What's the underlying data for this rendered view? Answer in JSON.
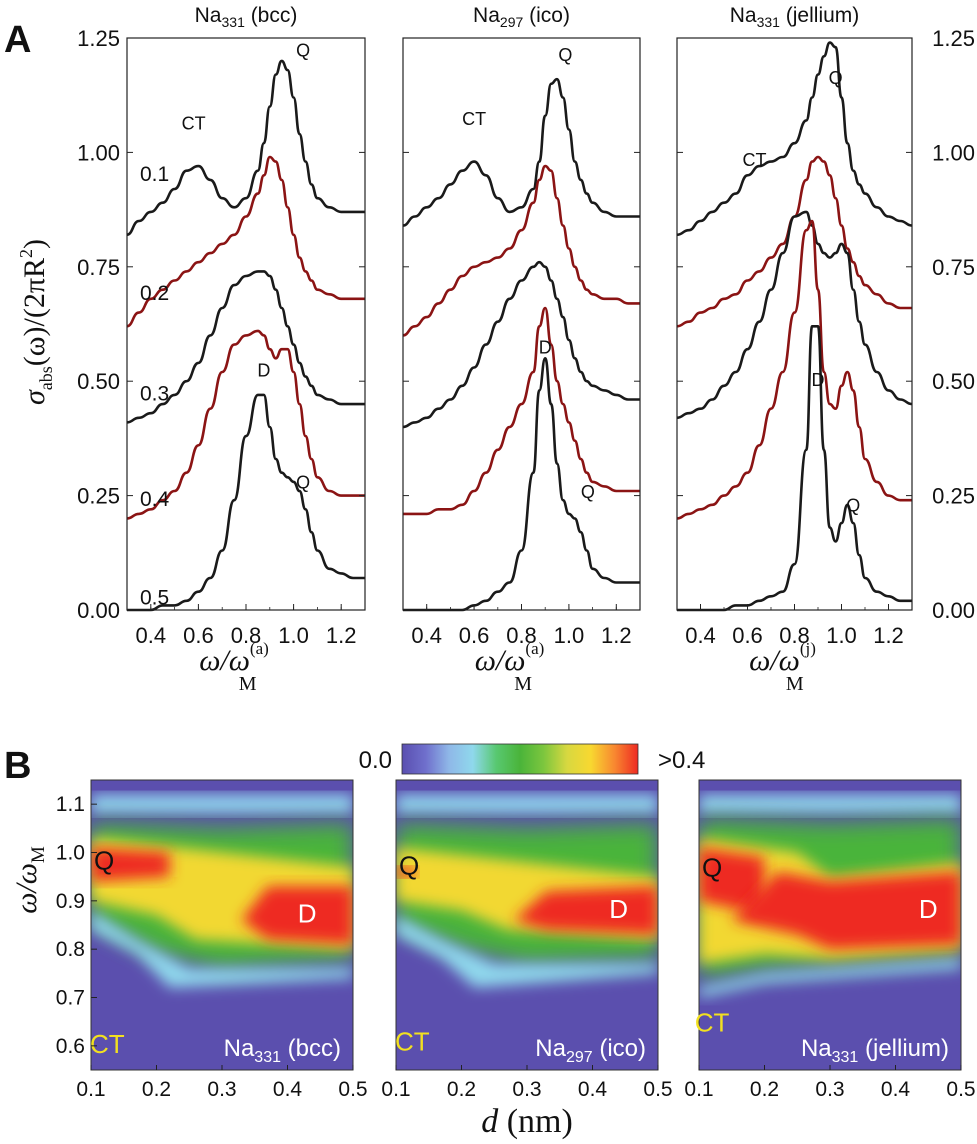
{
  "panel_letters": {
    "a": "A",
    "b": "B"
  },
  "chart_data": [
    {
      "type": "line",
      "panel": "A",
      "subplots": [
        {
          "title_main": "Na",
          "title_sub": "331",
          "title_rest": " (bcc)",
          "xlabel": {
            "w": "ω/ω",
            "sub": "M",
            "sup": "(a)"
          },
          "curve_labels": [
            {
              "text": "CT",
              "x": 0.58,
              "y": 1.05
            },
            {
              "text": "Q",
              "x": 1.04,
              "y": 1.21
            },
            {
              "text": "D",
              "x": 0.875,
              "y": 0.51
            },
            {
              "text": "Q",
              "x": 1.04,
              "y": 0.265
            }
          ]
        },
        {
          "title_main": "Na",
          "title_sub": "297",
          "title_rest": " (ico)",
          "xlabel": {
            "w": "ω/ω",
            "sub": "M",
            "sup": "(a)"
          },
          "curve_labels": [
            {
              "text": "CT",
              "x": 0.6,
              "y": 1.06
            },
            {
              "text": "Q",
              "x": 0.985,
              "y": 1.2
            },
            {
              "text": "D",
              "x": 0.9,
              "y": 0.56
            },
            {
              "text": "Q",
              "x": 1.08,
              "y": 0.245
            }
          ]
        },
        {
          "title_main": "Na",
          "title_sub": "331",
          "title_rest": " (jellium)",
          "xlabel": {
            "w": "ω/ω",
            "sub": "M",
            "sup": "(j)"
          },
          "curve_labels": [
            {
              "text": "CT",
              "x": 0.63,
              "y": 0.97
            },
            {
              "text": "Q",
              "x": 0.975,
              "y": 1.15
            },
            {
              "text": "D",
              "x": 0.9,
              "y": 0.49
            },
            {
              "text": "Q",
              "x": 1.05,
              "y": 0.215
            }
          ]
        }
      ],
      "offset_labels": [
        {
          "text": "0.1",
          "y": 0.955
        },
        {
          "text": "0.2",
          "y": 0.695
        },
        {
          "text": "0.3",
          "y": 0.475
        },
        {
          "text": "0.4",
          "y": 0.245
        },
        {
          "text": "0.5",
          "y": 0.03
        }
      ],
      "ylabel": {
        "sigma": "σ",
        "sub": "abs",
        "rest": "(ω)/(2πR",
        "sup": "2",
        "close": ")"
      },
      "xlim": [
        0.3,
        1.3
      ],
      "ylim": [
        0.0,
        1.25
      ],
      "xticks": [
        "0.4",
        "0.6",
        "0.8",
        "1.0",
        "1.2"
      ],
      "xtick_values": [
        0.4,
        0.6,
        0.8,
        1.0,
        1.2
      ],
      "yticks": [
        "0.00",
        "0.25",
        "0.50",
        "0.75",
        "1.00",
        "1.25"
      ],
      "ytick_values": [
        0,
        0.25,
        0.5,
        0.75,
        1.0,
        1.25
      ],
      "series_names": [
        "d=0.1 nm",
        "d=0.2 nm",
        "d=0.3 nm",
        "d=0.4 nm",
        "d=0.5 nm"
      ],
      "series_colors": [
        "#1a1a1a",
        "#8b1414",
        "#1a1a1a",
        "#8b1414",
        "#1a1a1a"
      ],
      "x": [
        0.3,
        0.35,
        0.4,
        0.45,
        0.5,
        0.55,
        0.6,
        0.65,
        0.7,
        0.75,
        0.8,
        0.85,
        0.875,
        0.9,
        0.925,
        0.95,
        0.975,
        1.0,
        1.025,
        1.05,
        1.075,
        1.1,
        1.15,
        1.2,
        1.25,
        1.3
      ],
      "series": [
        [
          [
            0.82,
            0.85,
            0.87,
            0.89,
            0.92,
            0.96,
            0.97,
            0.94,
            0.9,
            0.88,
            0.9,
            0.96,
            1.02,
            1.1,
            1.17,
            1.2,
            1.18,
            1.12,
            1.04,
            0.98,
            0.93,
            0.9,
            0.88,
            0.87,
            0.87,
            0.87
          ],
          [
            0.84,
            0.86,
            0.88,
            0.9,
            0.93,
            0.96,
            0.98,
            0.95,
            0.9,
            0.87,
            0.88,
            0.92,
            0.98,
            1.08,
            1.15,
            1.16,
            1.12,
            1.05,
            0.98,
            0.94,
            0.91,
            0.89,
            0.87,
            0.86,
            0.86,
            0.86
          ],
          [
            0.82,
            0.83,
            0.85,
            0.87,
            0.89,
            0.91,
            0.95,
            0.97,
            0.98,
            0.99,
            1.02,
            1.07,
            1.12,
            1.17,
            1.21,
            1.24,
            1.23,
            1.12,
            1.02,
            0.96,
            0.93,
            0.91,
            0.88,
            0.86,
            0.85,
            0.84
          ]
        ],
        [
          [
            0.62,
            0.65,
            0.68,
            0.7,
            0.72,
            0.74,
            0.76,
            0.78,
            0.8,
            0.82,
            0.86,
            0.91,
            0.95,
            0.99,
            0.98,
            0.94,
            0.88,
            0.82,
            0.77,
            0.74,
            0.72,
            0.7,
            0.69,
            0.68,
            0.68,
            0.68
          ],
          [
            0.6,
            0.62,
            0.64,
            0.67,
            0.7,
            0.73,
            0.75,
            0.76,
            0.77,
            0.79,
            0.83,
            0.89,
            0.94,
            0.97,
            0.96,
            0.9,
            0.84,
            0.79,
            0.75,
            0.72,
            0.7,
            0.69,
            0.68,
            0.68,
            0.67,
            0.67
          ],
          [
            0.62,
            0.63,
            0.65,
            0.66,
            0.68,
            0.69,
            0.72,
            0.74,
            0.77,
            0.8,
            0.86,
            0.94,
            0.98,
            0.99,
            0.98,
            0.95,
            0.9,
            0.84,
            0.79,
            0.76,
            0.73,
            0.71,
            0.69,
            0.67,
            0.66,
            0.66
          ]
        ],
        [
          [
            0.41,
            0.42,
            0.43,
            0.45,
            0.47,
            0.5,
            0.54,
            0.6,
            0.66,
            0.71,
            0.73,
            0.74,
            0.74,
            0.73,
            0.7,
            0.66,
            0.62,
            0.58,
            0.54,
            0.51,
            0.49,
            0.47,
            0.46,
            0.45,
            0.45,
            0.45
          ],
          [
            0.4,
            0.41,
            0.42,
            0.44,
            0.46,
            0.49,
            0.53,
            0.58,
            0.63,
            0.68,
            0.72,
            0.75,
            0.76,
            0.75,
            0.72,
            0.68,
            0.64,
            0.59,
            0.55,
            0.52,
            0.5,
            0.49,
            0.48,
            0.47,
            0.46,
            0.46
          ],
          [
            0.42,
            0.43,
            0.44,
            0.46,
            0.49,
            0.52,
            0.57,
            0.63,
            0.7,
            0.78,
            0.86,
            0.87,
            0.84,
            0.8,
            0.78,
            0.77,
            0.78,
            0.8,
            0.78,
            0.7,
            0.63,
            0.58,
            0.52,
            0.48,
            0.46,
            0.45
          ]
        ],
        [
          [
            0.2,
            0.21,
            0.22,
            0.24,
            0.26,
            0.3,
            0.36,
            0.44,
            0.52,
            0.58,
            0.6,
            0.61,
            0.6,
            0.57,
            0.55,
            0.57,
            0.57,
            0.52,
            0.45,
            0.38,
            0.33,
            0.29,
            0.26,
            0.25,
            0.25,
            0.25
          ],
          [
            0.21,
            0.21,
            0.21,
            0.22,
            0.22,
            0.23,
            0.26,
            0.3,
            0.35,
            0.4,
            0.45,
            0.52,
            0.62,
            0.66,
            0.58,
            0.5,
            0.45,
            0.41,
            0.37,
            0.33,
            0.3,
            0.28,
            0.27,
            0.26,
            0.26,
            0.26
          ],
          [
            0.2,
            0.21,
            0.22,
            0.23,
            0.25,
            0.27,
            0.3,
            0.36,
            0.44,
            0.52,
            0.65,
            0.83,
            0.85,
            0.7,
            0.52,
            0.45,
            0.44,
            0.49,
            0.52,
            0.48,
            0.4,
            0.33,
            0.28,
            0.25,
            0.24,
            0.24
          ]
        ],
        [
          [
            0.0,
            0.0,
            0.0,
            0.01,
            0.01,
            0.02,
            0.04,
            0.07,
            0.13,
            0.24,
            0.38,
            0.47,
            0.47,
            0.4,
            0.33,
            0.3,
            0.29,
            0.28,
            0.26,
            0.22,
            0.17,
            0.13,
            0.09,
            0.08,
            0.07,
            0.07
          ],
          [
            0.0,
            0.0,
            0.0,
            0.0,
            0.0,
            0.0,
            0.01,
            0.02,
            0.04,
            0.06,
            0.13,
            0.3,
            0.48,
            0.55,
            0.45,
            0.32,
            0.24,
            0.21,
            0.2,
            0.17,
            0.13,
            0.09,
            0.07,
            0.06,
            0.06,
            0.06
          ],
          [
            0.0,
            0.0,
            0.0,
            0.0,
            0.0,
            0.01,
            0.01,
            0.02,
            0.03,
            0.04,
            0.1,
            0.35,
            0.62,
            0.62,
            0.35,
            0.18,
            0.15,
            0.19,
            0.23,
            0.19,
            0.12,
            0.07,
            0.04,
            0.03,
            0.02,
            0.02
          ]
        ]
      ]
    },
    {
      "type": "heatmap",
      "panel": "B",
      "colorbar": {
        "min_label": "0.0",
        "max_label": ">0.4",
        "stops": [
          "#5a4fb0",
          "#6f6fcc",
          "#8fb8e8",
          "#8fd8ec",
          "#58c870",
          "#4ab43a",
          "#7cc63e",
          "#d8d840",
          "#f8d830",
          "#f88830",
          "#ee2a22"
        ]
      },
      "xlabel": {
        "var": "d",
        "unit": " (nm)"
      },
      "ylabel": {
        "w": "ω/ω",
        "sub": "M"
      },
      "xlim": [
        0.1,
        0.5
      ],
      "ylim": [
        0.55,
        1.15
      ],
      "xticks": [
        "0.1",
        "0.2",
        "0.3",
        "0.4",
        "0.5"
      ],
      "xtick_values": [
        0.1,
        0.2,
        0.3,
        0.4,
        0.5
      ],
      "yticks": [
        "0.6",
        "0.7",
        "0.8",
        "0.9",
        "1.0",
        "1.1"
      ],
      "ytick_values": [
        0.6,
        0.7,
        0.8,
        0.9,
        1.0,
        1.1
      ],
      "maps": [
        {
          "label_main": "Na",
          "label_sub": "331",
          "label_rest": " (bcc)",
          "q_label": "Q",
          "d_label": "D",
          "ct_label": "CT",
          "q_pos": [
            0.12,
            0.965
          ],
          "d_pos": [
            0.43,
            0.855
          ],
          "ct_pos": [
            0.125,
            0.585
          ]
        },
        {
          "label_main": "Na",
          "label_sub": "297",
          "label_rest": " (ico)",
          "q_label": "Q",
          "d_label": "D",
          "ct_label": "CT",
          "q_pos": [
            0.12,
            0.955
          ],
          "d_pos": [
            0.44,
            0.865
          ],
          "ct_pos": [
            0.125,
            0.59
          ]
        },
        {
          "label_main": "Na",
          "label_sub": "331",
          "label_rest": " (jellium)",
          "q_label": "Q",
          "d_label": "D",
          "ct_label": "CT",
          "q_pos": [
            0.12,
            0.95
          ],
          "d_pos": [
            0.45,
            0.865
          ],
          "ct_pos": [
            0.12,
            0.63
          ]
        }
      ]
    }
  ]
}
